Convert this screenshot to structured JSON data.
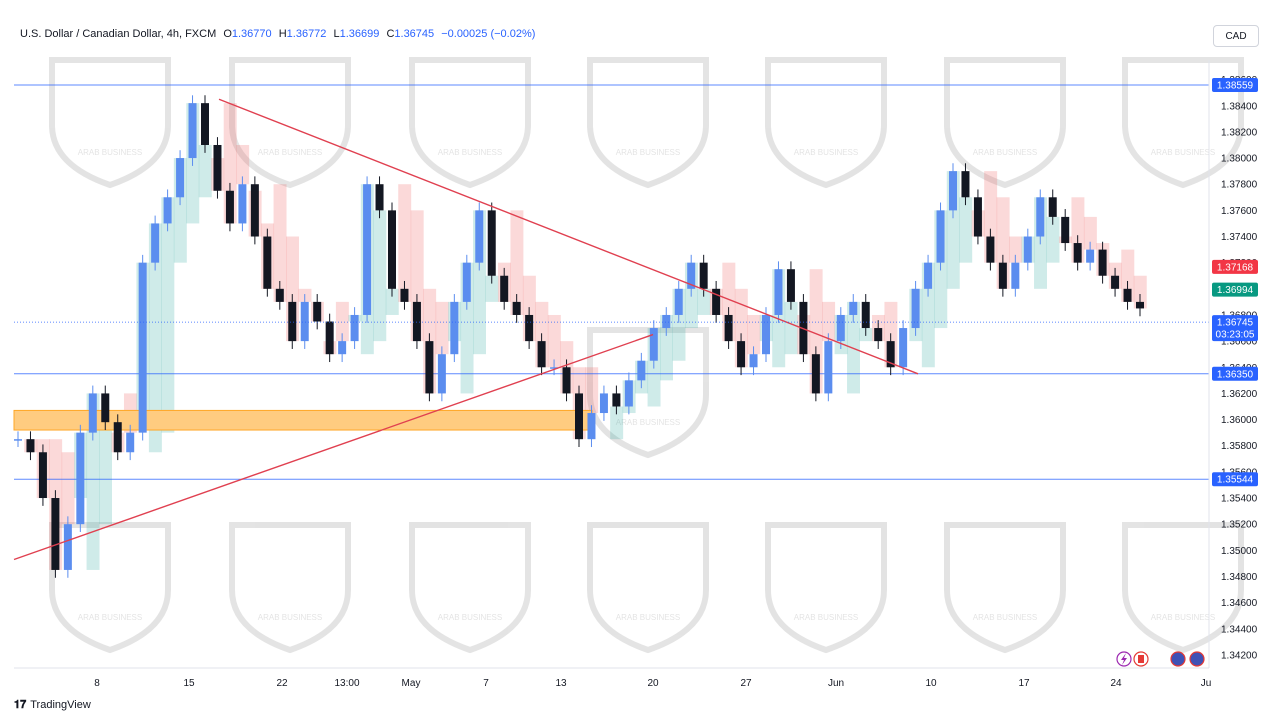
{
  "header": {
    "symbol": "U.S. Dollar / Canadian Dollar, 4h, FXCM",
    "open_label": "O",
    "open": "1.36770",
    "high_label": "H",
    "high": "1.36772",
    "low_label": "L",
    "low": "1.36699",
    "close_label": "C",
    "close": "1.36745",
    "change": "−0.00025 (−0.02%)"
  },
  "currency_button": "CAD",
  "footer": {
    "brand": "TradingView"
  },
  "watermark": {
    "brand": "ARAB BUSINESS"
  },
  "colors": {
    "bull": "#5b8def",
    "bear": "#131722",
    "level": "#2962ff",
    "trendline": "#e04050",
    "zone": "#ffa726",
    "cloud_up": "#26a69a",
    "cloud_down": "#ef5350"
  },
  "chart_data": {
    "type": "line",
    "title": "U.S. Dollar / Canadian Dollar, 4h, FXCM",
    "xlabel": "",
    "ylabel": "",
    "ylim": [
      1.341,
      1.3875
    ],
    "y_ticks": [
      "1.38600",
      "1.38400",
      "1.38200",
      "1.38000",
      "1.37800",
      "1.37600",
      "1.37400",
      "1.37200",
      "1.37000",
      "1.36800",
      "1.36600",
      "1.36400",
      "1.36200",
      "1.36000",
      "1.35800",
      "1.35600",
      "1.35400",
      "1.35200",
      "1.35000",
      "1.34800",
      "1.34600",
      "1.34400",
      "1.34200"
    ],
    "x_ticks": [
      "8",
      "15",
      "22",
      "13:00",
      "May",
      "7",
      "13",
      "20",
      "27",
      "Jun",
      "10",
      "17",
      "24",
      "Ju"
    ],
    "series": [
      {
        "values": [
          1.3585,
          1.3575,
          1.354,
          1.3485,
          1.352,
          1.359,
          1.362,
          1.3598,
          1.3575,
          1.359,
          1.372,
          1.375,
          1.377,
          1.38,
          1.3842,
          1.381,
          1.3775,
          1.375,
          1.378,
          1.374,
          1.37,
          1.369,
          1.366,
          1.369,
          1.3675,
          1.365,
          1.366,
          1.368,
          1.378,
          1.376,
          1.37,
          1.369,
          1.366,
          1.362,
          1.365,
          1.369,
          1.372,
          1.376,
          1.371,
          1.369,
          1.368,
          1.366,
          1.364,
          1.364,
          1.362,
          1.3585,
          1.3605,
          1.362,
          1.361,
          1.363,
          1.3645,
          1.367,
          1.368,
          1.37,
          1.372,
          1.37,
          1.368,
          1.366,
          1.364,
          1.365,
          1.368,
          1.3715,
          1.369,
          1.365,
          1.362,
          1.366,
          1.368,
          1.369,
          1.367,
          1.366,
          1.364,
          1.367,
          1.37,
          1.372,
          1.376,
          1.379,
          1.377,
          1.374,
          1.372,
          1.37,
          1.372,
          1.374,
          1.377,
          1.3755,
          1.3735,
          1.372,
          1.373,
          1.371,
          1.37,
          1.369,
          1.3685
        ]
      }
    ],
    "levels": [
      {
        "label": "1.38559",
        "value": 1.38559
      },
      {
        "label": "1.36350",
        "value": 1.3635
      },
      {
        "label": "1.35544",
        "value": 1.35544
      }
    ],
    "price_tags": [
      {
        "label": "1.37168",
        "value": 1.37168,
        "color": "#f23645"
      },
      {
        "label": "1.36994",
        "value": 1.36994,
        "color": "#089981"
      },
      {
        "label": "1.36745",
        "value": 1.36745,
        "color": "#2962ff",
        "countdown": "03:23:05"
      }
    ],
    "trendlines": [
      {
        "from": [
          "8 (start)",
          1.3493
        ],
        "to": [
          "20",
          1.3665
        ]
      },
      {
        "from": [
          "15 (+2d)",
          1.3845
        ],
        "to": [
          "Jun (+5d)",
          1.3635
        ]
      }
    ],
    "zone": {
      "from_y": 1.3592,
      "to_y": 1.3607
    },
    "legend": "none",
    "grid": false
  }
}
